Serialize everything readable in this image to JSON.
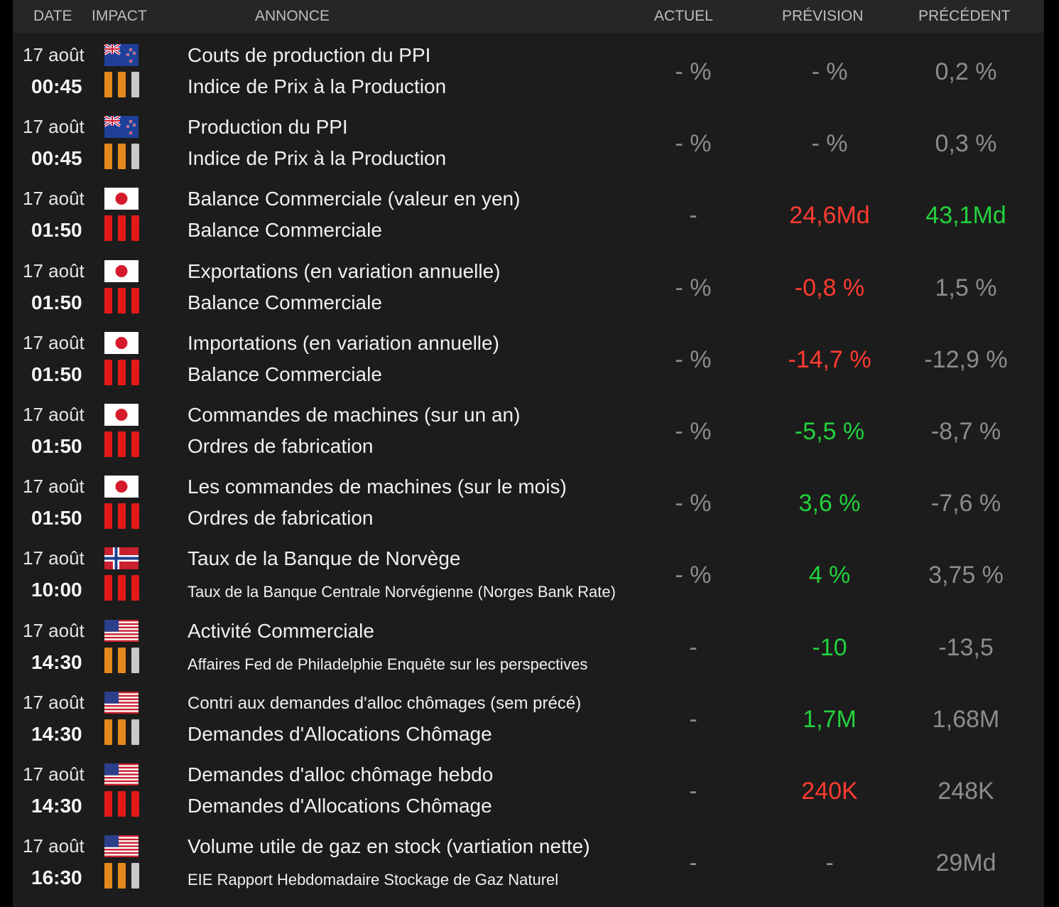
{
  "columns": {
    "date": "DATE",
    "impact": "IMPACT",
    "annonce": "ANNONCE",
    "actuel": "ACTUEL",
    "prevision": "PRÉVISION",
    "precedent": "PRÉCÉDENT"
  },
  "colors": {
    "orange": "#e5891c",
    "red": "#e31919",
    "grey": "#c8c8c8",
    "value_red": "#ff3b30",
    "value_green": "#23d13d"
  },
  "rows": [
    {
      "date": "17 août",
      "time": "00:45",
      "flag": "nz-flag",
      "impact": [
        "orange",
        "orange",
        "grey"
      ],
      "title": "Couts de production du PPI",
      "subtitle": "Indice de Prix à la Production",
      "actuel": "- %",
      "prevision": "- %",
      "prevision_color": "grey",
      "precedent": "0,2 %",
      "precedent_color": "grey"
    },
    {
      "date": "17 août",
      "time": "00:45",
      "flag": "nz-flag",
      "impact": [
        "orange",
        "orange",
        "grey"
      ],
      "title": "Production du PPI",
      "subtitle": "Indice de Prix à la Production",
      "actuel": "- %",
      "prevision": "- %",
      "prevision_color": "grey",
      "precedent": "0,3 %",
      "precedent_color": "grey"
    },
    {
      "date": "17 août",
      "time": "01:50",
      "flag": "jp-flag",
      "impact": [
        "red",
        "red",
        "red"
      ],
      "title": "Balance Commerciale (valeur en yen)",
      "subtitle": "Balance Commerciale",
      "actuel": "-",
      "prevision": "24,6Md",
      "prevision_color": "red",
      "precedent": "43,1Md",
      "precedent_color": "green"
    },
    {
      "date": "17 août",
      "time": "01:50",
      "flag": "jp-flag",
      "impact": [
        "red",
        "red",
        "red"
      ],
      "title": "Exportations (en variation annuelle)",
      "subtitle": "Balance Commerciale",
      "actuel": "- %",
      "prevision": "-0,8 %",
      "prevision_color": "red",
      "precedent": "1,5 %",
      "precedent_color": "grey"
    },
    {
      "date": "17 août",
      "time": "01:50",
      "flag": "jp-flag",
      "impact": [
        "red",
        "red",
        "red"
      ],
      "title": "Importations (en variation annuelle)",
      "subtitle": "Balance Commerciale",
      "actuel": "- %",
      "prevision": "-14,7 %",
      "prevision_color": "red",
      "precedent": "-12,9 %",
      "precedent_color": "grey"
    },
    {
      "date": "17 août",
      "time": "01:50",
      "flag": "jp-flag",
      "impact": [
        "red",
        "red",
        "red"
      ],
      "title": "Commandes de machines (sur un an)",
      "subtitle": "Ordres de fabrication",
      "actuel": "- %",
      "prevision": "-5,5 %",
      "prevision_color": "green",
      "precedent": "-8,7 %",
      "precedent_color": "grey"
    },
    {
      "date": "17 août",
      "time": "01:50",
      "flag": "jp-flag",
      "impact": [
        "red",
        "red",
        "red"
      ],
      "title": "Les commandes de machines (sur le mois)",
      "subtitle": "Ordres de fabrication",
      "actuel": "- %",
      "prevision": "3,6 %",
      "prevision_color": "green",
      "precedent": "-7,6 %",
      "precedent_color": "grey"
    },
    {
      "date": "17 août",
      "time": "10:00",
      "flag": "no-flag",
      "impact": [
        "red",
        "red",
        "red"
      ],
      "title": "Taux de la Banque de Norvège",
      "subtitle": "Taux de la Banque Centrale Norvégienne (Norges Bank Rate)",
      "subtitle_small": true,
      "actuel": "- %",
      "prevision": "4 %",
      "prevision_color": "green",
      "precedent": "3,75 %",
      "precedent_color": "grey"
    },
    {
      "date": "17 août",
      "time": "14:30",
      "flag": "us-flag",
      "impact": [
        "orange",
        "orange",
        "grey"
      ],
      "title": "Activité Commerciale",
      "subtitle": "Affaires Fed de Philadelphie Enquête sur les perspectives",
      "subtitle_small": true,
      "actuel": "-",
      "prevision": "-10",
      "prevision_color": "green",
      "precedent": "-13,5",
      "precedent_color": "grey"
    },
    {
      "date": "17 août",
      "time": "14:30",
      "flag": "us-flag",
      "impact": [
        "orange",
        "orange",
        "grey"
      ],
      "title": "Contri aux demandes d'alloc chômages (sem précé)",
      "title_small": true,
      "subtitle": "Demandes d'Allocations Chômage",
      "actuel": "-",
      "prevision": "1,7M",
      "prevision_color": "green",
      "precedent": "1,68M",
      "precedent_color": "grey"
    },
    {
      "date": "17 août",
      "time": "14:30",
      "flag": "us-flag",
      "impact": [
        "red",
        "red",
        "red"
      ],
      "title": "Demandes d'alloc chômage hebdo",
      "subtitle": "Demandes d'Allocations Chômage",
      "actuel": "-",
      "prevision": "240K",
      "prevision_color": "red",
      "precedent": "248K",
      "precedent_color": "grey"
    },
    {
      "date": "17 août",
      "time": "16:30",
      "flag": "us-flag",
      "impact": [
        "orange",
        "orange",
        "grey"
      ],
      "title": "Volume utile de gaz en stock (vartiation nette)",
      "subtitle": "EIE Rapport Hebdomadaire Stockage de Gaz Naturel",
      "subtitle_small": true,
      "actuel": "-",
      "prevision": "-",
      "prevision_color": "grey",
      "precedent": "29Md",
      "precedent_color": "grey"
    }
  ]
}
